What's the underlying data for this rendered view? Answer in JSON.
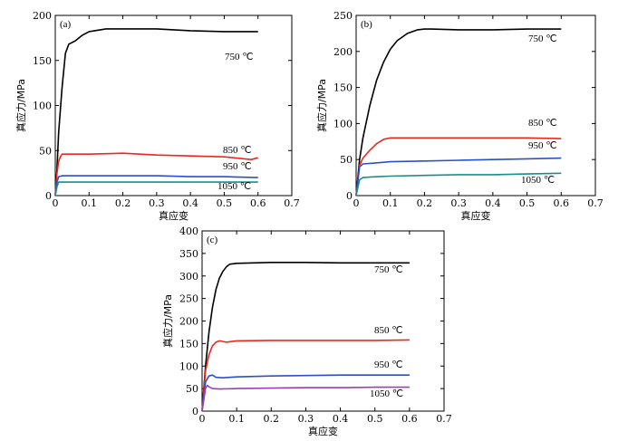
{
  "chart_data": [
    {
      "type": "line",
      "panel_label": "(a)",
      "xlabel": "真应变",
      "ylabel": "真应力/MPa",
      "xlim": [
        0,
        0.7
      ],
      "ylim": [
        0,
        200
      ],
      "xticks": [
        "0",
        "0.1",
        "0.2",
        "0.3",
        "0.4",
        "0.5",
        "0.6",
        "0.7"
      ],
      "yticks": [
        "0",
        "50",
        "100",
        "150",
        "200"
      ],
      "series": [
        {
          "name": "750 ℃",
          "color": "#000000",
          "x": [
            0,
            0.005,
            0.01,
            0.02,
            0.03,
            0.04,
            0.06,
            0.08,
            0.1,
            0.15,
            0.2,
            0.3,
            0.4,
            0.5,
            0.6
          ],
          "y": [
            0,
            30,
            70,
            120,
            158,
            168,
            172,
            178,
            182,
            185,
            185,
            185,
            183,
            182,
            182
          ]
        },
        {
          "name": "850 ℃",
          "color": "#e8291c",
          "x": [
            0,
            0.005,
            0.01,
            0.015,
            0.02,
            0.03,
            0.05,
            0.1,
            0.2,
            0.3,
            0.4,
            0.5,
            0.58,
            0.6
          ],
          "y": [
            0,
            25,
            38,
            43,
            46,
            46,
            46,
            46,
            47,
            45,
            44,
            43,
            40,
            42
          ]
        },
        {
          "name": "950 ℃",
          "color": "#2b50c8",
          "x": [
            0,
            0.005,
            0.01,
            0.02,
            0.05,
            0.1,
            0.2,
            0.3,
            0.4,
            0.5,
            0.6
          ],
          "y": [
            0,
            15,
            21,
            22,
            22,
            22,
            22,
            22,
            21,
            21,
            20
          ]
        },
        {
          "name": "1050 ℃",
          "color": "#1f8a8a",
          "x": [
            0,
            0.005,
            0.01,
            0.02,
            0.05,
            0.1,
            0.2,
            0.3,
            0.4,
            0.5,
            0.6
          ],
          "y": [
            0,
            10,
            15,
            15,
            15,
            15,
            15,
            15,
            15,
            15,
            15
          ]
        }
      ]
    },
    {
      "type": "line",
      "panel_label": "(b)",
      "xlabel": "真应变",
      "ylabel": "真应力/MPa",
      "xlim": [
        0,
        0.7
      ],
      "ylim": [
        0,
        250
      ],
      "xticks": [
        "0",
        "0.1",
        "0.2",
        "0.3",
        "0.4",
        "0.5",
        "0.6",
        "0.7"
      ],
      "yticks": [
        "0",
        "50",
        "100",
        "150",
        "200",
        "250"
      ],
      "series": [
        {
          "name": "750 ℃",
          "color": "#000000",
          "x": [
            0,
            0.01,
            0.02,
            0.04,
            0.06,
            0.08,
            0.1,
            0.12,
            0.15,
            0.18,
            0.2,
            0.22,
            0.3,
            0.4,
            0.5,
            0.6
          ],
          "y": [
            0,
            50,
            80,
            125,
            160,
            185,
            203,
            215,
            225,
            230,
            231,
            231,
            230,
            230,
            231,
            231
          ]
        },
        {
          "name": "850 ℃",
          "color": "#e8291c",
          "x": [
            0,
            0.01,
            0.02,
            0.04,
            0.06,
            0.08,
            0.1,
            0.2,
            0.3,
            0.4,
            0.5,
            0.6
          ],
          "y": [
            0,
            42,
            52,
            63,
            72,
            78,
            80,
            80,
            80,
            80,
            80,
            79
          ]
        },
        {
          "name": "950 ℃",
          "color": "#2b50c8",
          "x": [
            0,
            0.01,
            0.02,
            0.05,
            0.1,
            0.2,
            0.3,
            0.4,
            0.5,
            0.6
          ],
          "y": [
            0,
            40,
            44,
            45,
            47,
            48,
            49,
            50,
            51,
            52
          ]
        },
        {
          "name": "1050 ℃",
          "color": "#1f8a8a",
          "x": [
            0,
            0.01,
            0.02,
            0.05,
            0.1,
            0.2,
            0.3,
            0.4,
            0.5,
            0.6
          ],
          "y": [
            0,
            22,
            25,
            26,
            27,
            28,
            29,
            29,
            30,
            31
          ]
        }
      ]
    },
    {
      "type": "line",
      "panel_label": "(c)",
      "xlabel": "真应变",
      "ylabel": "真应力/MPa",
      "xlim": [
        0,
        0.7
      ],
      "ylim": [
        0,
        400
      ],
      "xticks": [
        "0",
        "0.1",
        "0.2",
        "0.3",
        "0.4",
        "0.5",
        "0.6",
        "0.7"
      ],
      "yticks": [
        "0",
        "50",
        "100",
        "150",
        "200",
        "250",
        "300",
        "350",
        "400"
      ],
      "series": [
        {
          "name": "750 ℃",
          "color": "#000000",
          "x": [
            0,
            0.01,
            0.02,
            0.03,
            0.04,
            0.05,
            0.06,
            0.07,
            0.08,
            0.1,
            0.2,
            0.3,
            0.4,
            0.5,
            0.6
          ],
          "y": [
            0,
            100,
            175,
            230,
            270,
            295,
            310,
            320,
            326,
            328,
            330,
            330,
            329,
            329,
            329
          ]
        },
        {
          "name": "850 ℃",
          "color": "#e8291c",
          "x": [
            0,
            0.01,
            0.02,
            0.03,
            0.04,
            0.05,
            0.07,
            0.1,
            0.2,
            0.3,
            0.4,
            0.5,
            0.6
          ],
          "y": [
            0,
            90,
            125,
            145,
            153,
            156,
            153,
            156,
            157,
            157,
            157,
            157,
            158
          ]
        },
        {
          "name": "950 ℃",
          "color": "#2b50c8",
          "x": [
            0,
            0.01,
            0.02,
            0.03,
            0.04,
            0.06,
            0.1,
            0.2,
            0.3,
            0.4,
            0.5,
            0.6
          ],
          "y": [
            0,
            65,
            78,
            80,
            75,
            74,
            76,
            78,
            79,
            80,
            80,
            80
          ]
        },
        {
          "name": "1050 ℃",
          "color": "#9b3fb5",
          "x": [
            0,
            0.01,
            0.015,
            0.02,
            0.03,
            0.05,
            0.1,
            0.2,
            0.3,
            0.4,
            0.5,
            0.6
          ],
          "y": [
            0,
            50,
            57,
            54,
            50,
            49,
            50,
            51,
            52,
            52,
            53,
            53
          ]
        }
      ]
    }
  ]
}
